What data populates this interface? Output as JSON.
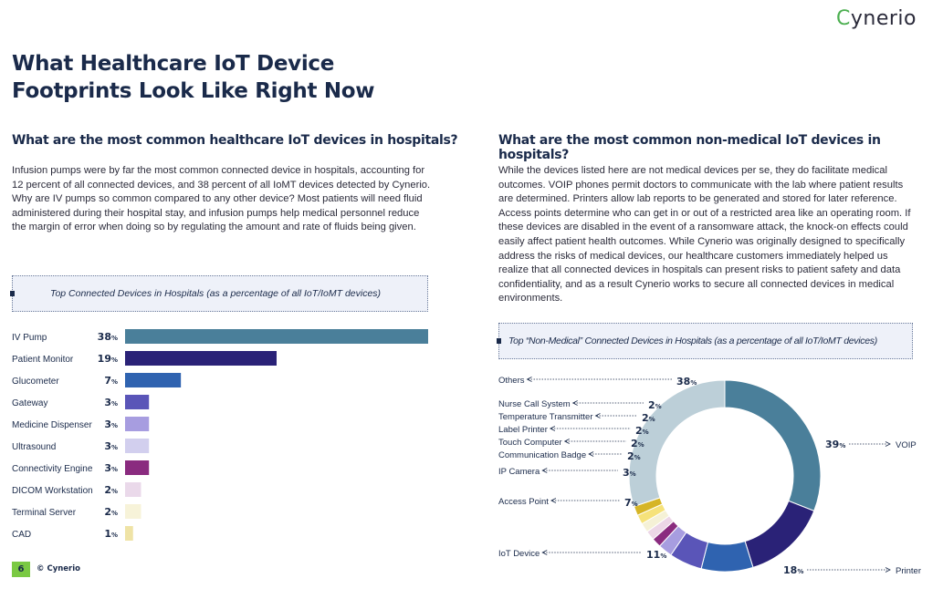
{
  "brand": {
    "logo_prefix": "C",
    "logo_rest": "ynerio",
    "accent_color": "#4caf50"
  },
  "page": {
    "title": "What Healthcare IoT Device Footprints Look Like Right Now",
    "left_heading": "What are the most common healthcare IoT devices in hospitals?",
    "left_paragraph": "Infusion pumps were by far the most common connected device in hospitals, accounting for 12 percent of all connected devices, and 38 percent of all IoMT devices detected by Cynerio. Why are IV pumps so common compared to any other device? Most patients will need fluid administered during their hospital stay, and infusion pumps help medical personnel reduce the margin of error when doing so by regulating the amount and rate of fluids being given.",
    "right_heading": "What are the most common non-medical IoT devices in hospitals?",
    "right_paragraph": "While the devices listed here are not medical devices per se, they do facilitate medical outcomes. VOIP phones permit doctors to communicate with the lab where patient results are determined. Printers allow lab reports to be generated and stored for later reference. Access points determine who can get in or out of a restricted area like an operating room. If these devices are disabled in the event of a ransomware attack, the knock-on effects could easily affect patient health outcomes. While Cynerio was originally designed to specifically address the risks of medical devices, our healthcare customers immediately helped us realize that all connected devices in hospitals can present risks to patient safety and data confidentiality, and as a result Cynerio works to secure all connected devices in medical environments."
  },
  "footer": {
    "page_number": "6",
    "copyright": "© Cynerio"
  },
  "chart_data": [
    {
      "type": "bar",
      "orientation": "horizontal",
      "title": "Top Connected Devices in Hospitals (as a percentage of all IoT/IoMT devices)",
      "categories": [
        "IV Pump",
        "Patient Monitor",
        "Glucometer",
        "Gateway",
        "Medicine Dispenser",
        "Ultrasound",
        "Connectivity Engine",
        "DICOM Workstation",
        "Terminal Server",
        "CAD"
      ],
      "values": [
        38,
        19,
        7,
        3,
        3,
        3,
        3,
        2,
        2,
        1
      ],
      "unit": "%",
      "colors": [
        "#4a7f9a",
        "#2a2277",
        "#2f63b0",
        "#5a55b8",
        "#a79de0",
        "#d2cfee",
        "#8a2b7f",
        "#ead9ea",
        "#f7f3d9",
        "#efe3a6"
      ]
    },
    {
      "type": "pie",
      "variant": "donut",
      "title": "Top “Non-Medical” Connected Devices in Hospitals (as a percentage of all IoT/IoMT devices)",
      "categories": [
        "VOIP",
        "Printer",
        "IoT Device",
        "Access Point",
        "IP Camera",
        "Communication Badge",
        "Touch Computer",
        "Label Printer",
        "Temperature Transmitter",
        "Nurse Call System",
        "Others"
      ],
      "values": [
        39,
        18,
        11,
        7,
        3,
        2,
        2,
        2,
        2,
        2,
        38
      ],
      "unit": "%",
      "colors": [
        "#4a7f9a",
        "#2a2277",
        "#2f63b0",
        "#5a55b8",
        "#a79de0",
        "#8a2b7f",
        "#ecd6e6",
        "#f5f1d6",
        "#f6e27a",
        "#d6b526",
        "#bccfd8"
      ]
    }
  ]
}
